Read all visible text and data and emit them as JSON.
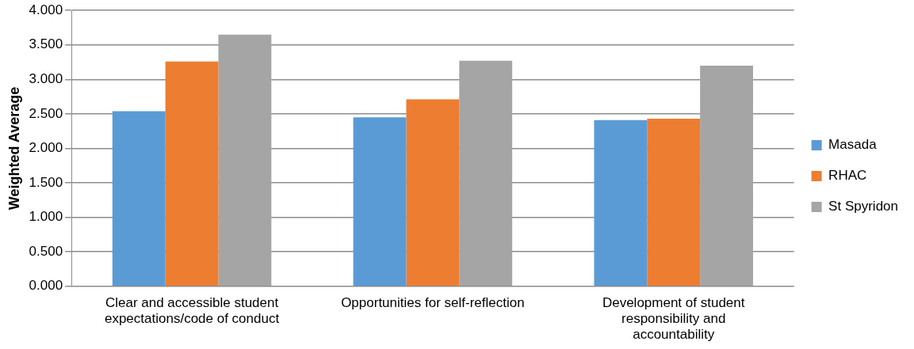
{
  "chart_data": {
    "type": "bar",
    "ylabel": "Weighted Average",
    "categories": [
      "Clear and accessible student expectations/code of conduct",
      "Opportunities for self-reflection",
      "Development of student responsibility and accountability"
    ],
    "series": [
      {
        "name": "Masada",
        "color": "#5b9bd5",
        "values": [
          2.54,
          2.45,
          2.41
        ]
      },
      {
        "name": "RHAC",
        "color": "#ed7d31",
        "values": [
          3.26,
          2.71,
          2.43
        ]
      },
      {
        "name": "St Spyridon",
        "color": "#a5a5a5",
        "values": [
          3.65,
          3.27,
          3.2
        ]
      }
    ],
    "ylim": [
      0,
      4
    ],
    "yticks": [
      {
        "value": 0,
        "label": "0.000"
      },
      {
        "value": 0.5,
        "label": "0.500"
      },
      {
        "value": 1,
        "label": "1.000"
      },
      {
        "value": 1.5,
        "label": "1.500"
      },
      {
        "value": 2,
        "label": "2.000"
      },
      {
        "value": 2.5,
        "label": "2.500"
      },
      {
        "value": 3,
        "label": "3.000"
      },
      {
        "value": 3.5,
        "label": "3.500"
      },
      {
        "value": 4,
        "label": "4.000"
      }
    ],
    "grid": "y",
    "legend": "right"
  }
}
